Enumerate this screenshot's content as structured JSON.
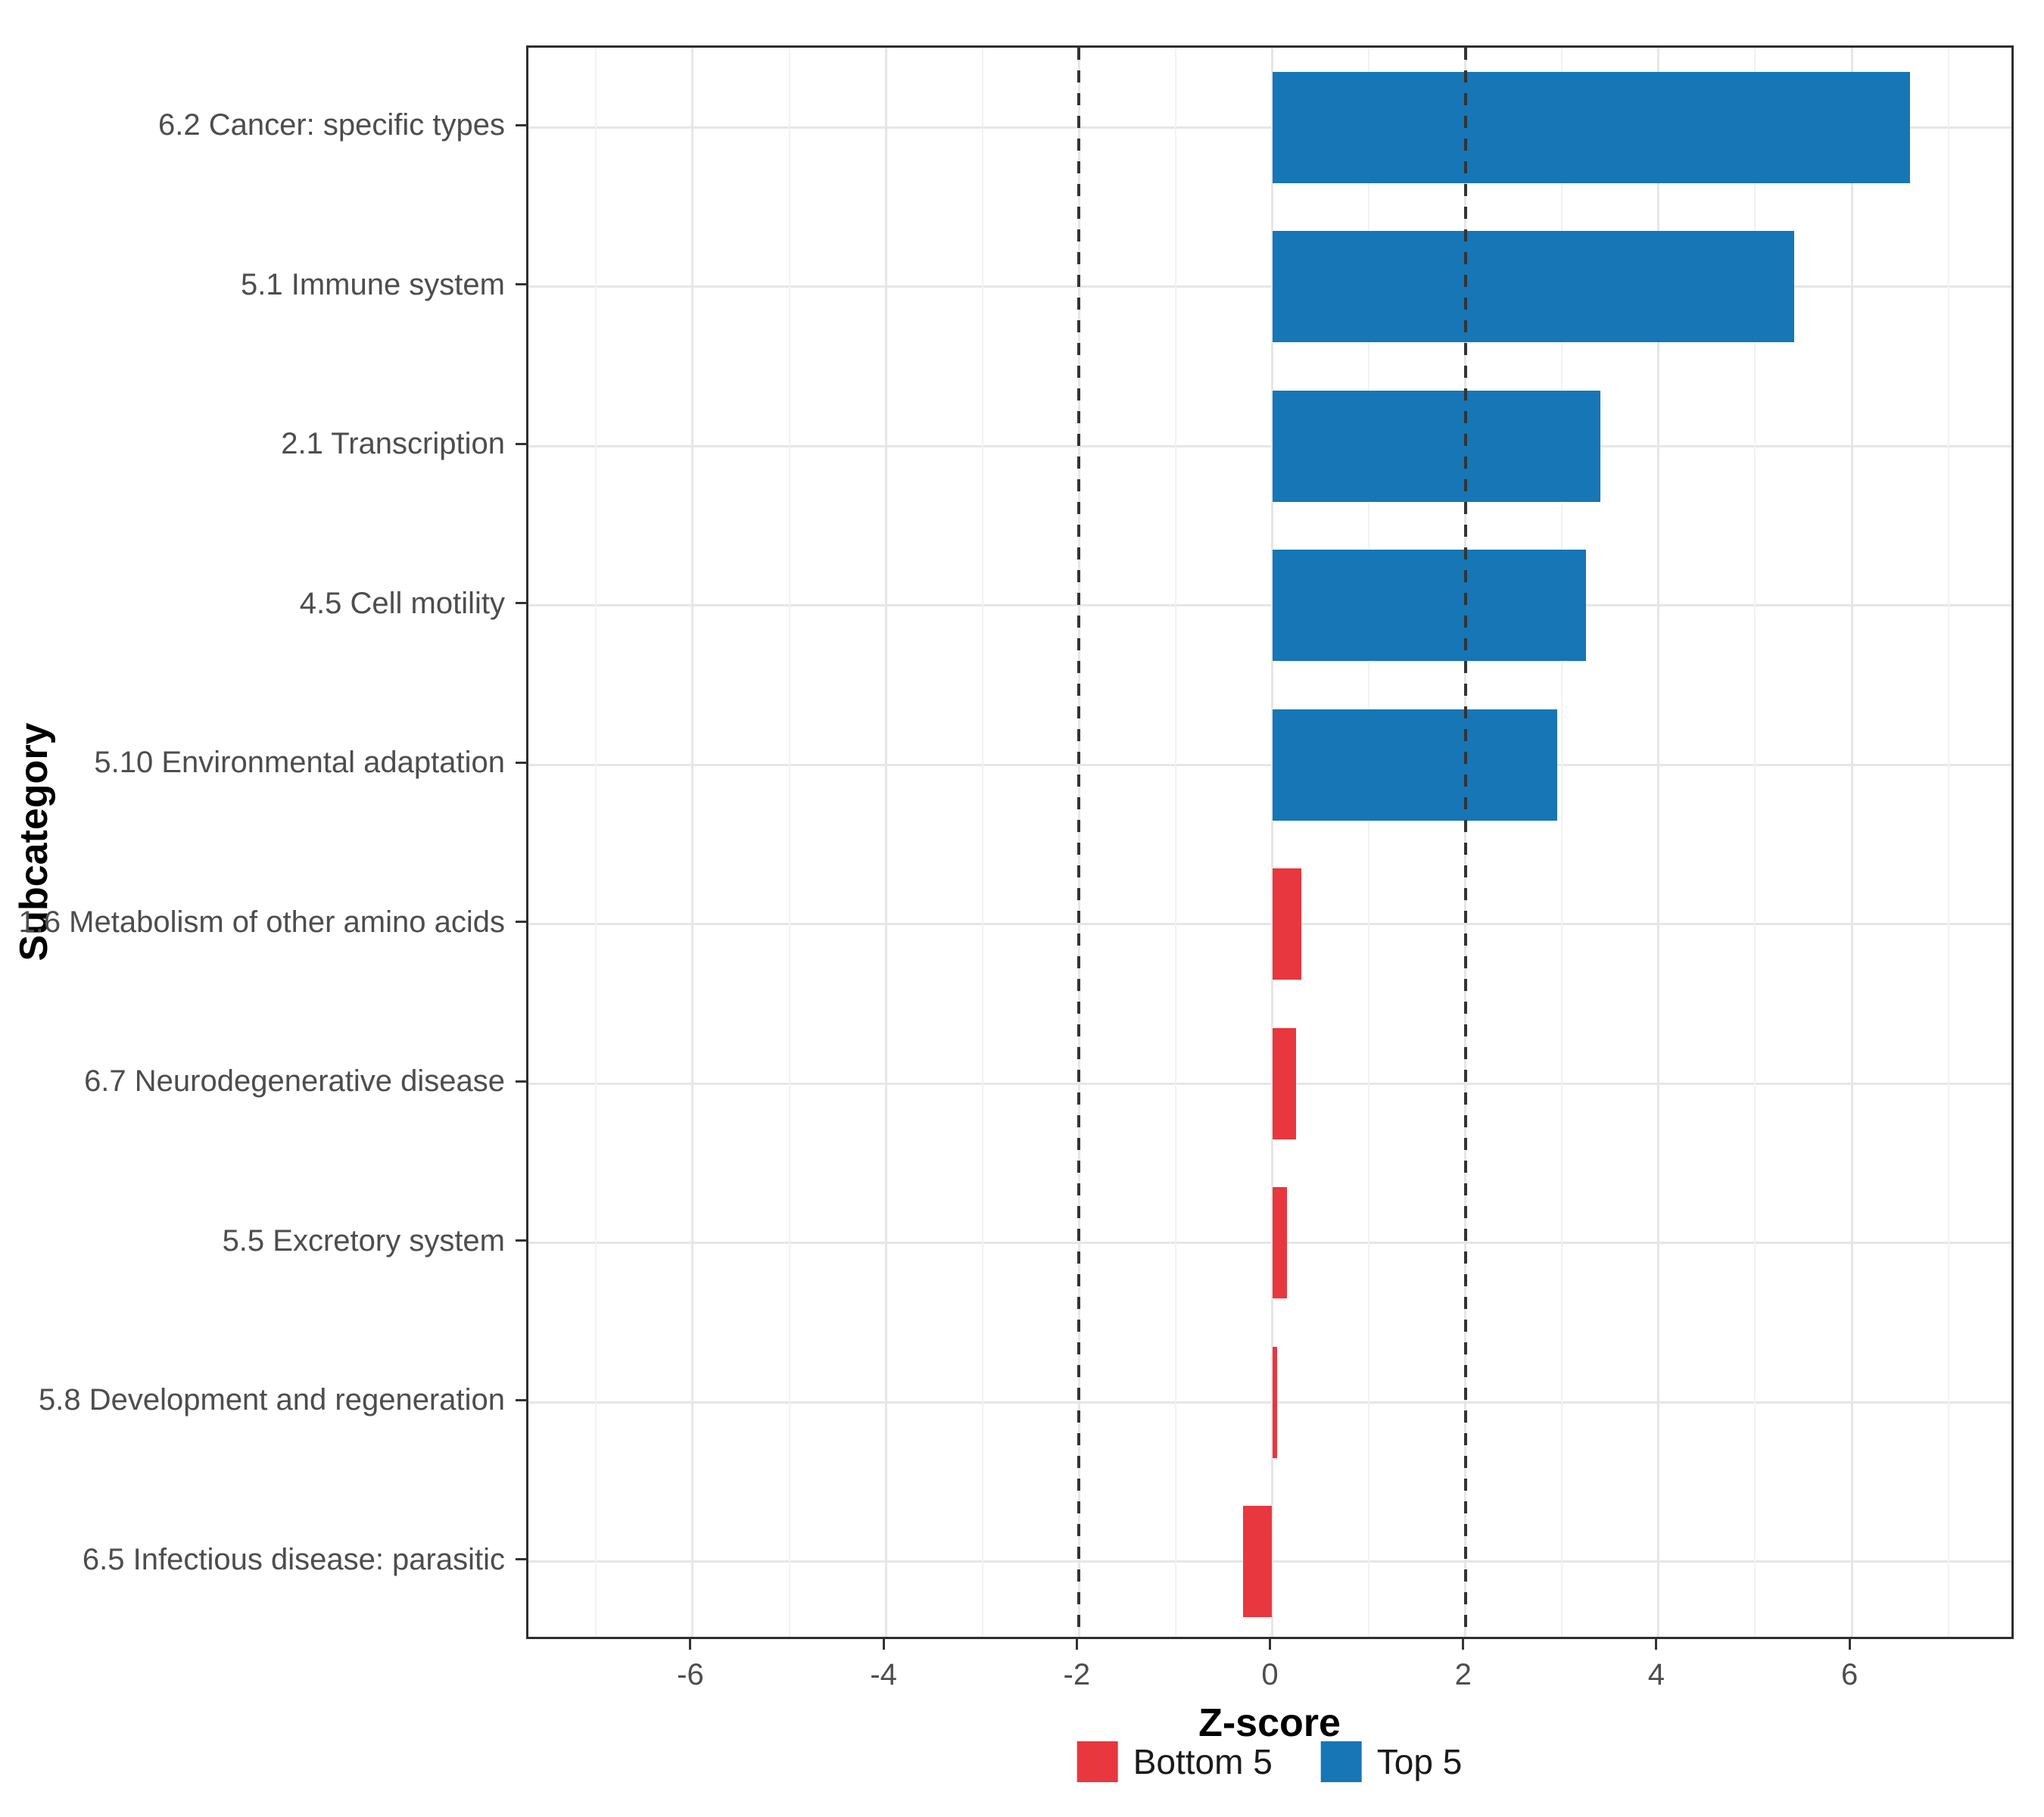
{
  "chart_data": {
    "type": "bar",
    "orientation": "horizontal",
    "xlabel": "Z-score",
    "ylabel": "Subcategory",
    "categories": [
      "6.2 Cancer: specific types",
      "5.1 Immune system",
      "2.1 Transcription",
      "4.5 Cell motility",
      "5.10 Environmental adaptation",
      "1.6 Metabolism of other amino acids",
      "6.7 Neurodegenerative disease",
      "5.5 Excretory system",
      "5.8 Development and regeneration",
      "6.5 Infectious disease: parasitic"
    ],
    "values": [
      6.6,
      5.4,
      3.4,
      3.25,
      2.95,
      0.3,
      0.25,
      0.15,
      0.05,
      -0.3
    ],
    "groups": [
      "Top 5",
      "Top 5",
      "Top 5",
      "Top 5",
      "Top 5",
      "Bottom 5",
      "Bottom 5",
      "Bottom 5",
      "Bottom 5",
      "Bottom 5"
    ],
    "colors": {
      "Top 5": "#1776B6",
      "Bottom 5": "#E8373E"
    },
    "xlim": [
      -7.7,
      7.7
    ],
    "xticks": [
      -6,
      -4,
      -2,
      0,
      2,
      4,
      6
    ],
    "xtick_labels": [
      "-6",
      "-4",
      "-2",
      "0",
      "2",
      "4",
      "6"
    ],
    "minor_xticks": [
      -7,
      -5,
      -3,
      -1,
      1,
      3,
      5,
      7
    ],
    "reference_lines": [
      {
        "x": -2,
        "style": "dashed",
        "color": "#333333"
      },
      {
        "x": 2,
        "style": "dashed",
        "color": "#333333"
      }
    ],
    "grid": true,
    "legend": {
      "position": "bottom",
      "items": [
        {
          "label": "Bottom 5",
          "color": "#E8373E"
        },
        {
          "label": "Top 5",
          "color": "#1776B6"
        }
      ]
    }
  }
}
